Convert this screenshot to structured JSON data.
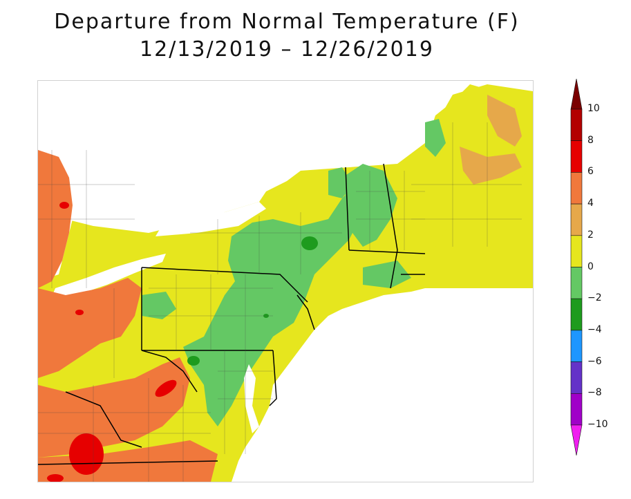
{
  "title": {
    "line1": "Departure from Normal Temperature (F)",
    "line2": "12/13/2019 – 12/26/2019"
  },
  "legend": {
    "ticks": [
      {
        "label": "10",
        "value": 10
      },
      {
        "label": "8",
        "value": 8
      },
      {
        "label": "6",
        "value": 6
      },
      {
        "label": "4",
        "value": 4
      },
      {
        "label": "2",
        "value": 2
      },
      {
        "label": "0",
        "value": 0
      },
      {
        "label": "−2",
        "value": -2
      },
      {
        "label": "−4",
        "value": -4
      },
      {
        "label": "−6",
        "value": -6
      },
      {
        "label": "−8",
        "value": -8
      },
      {
        "label": "−10",
        "value": -10
      }
    ],
    "bins": [
      {
        "from": 10,
        "to": 12,
        "color": "#7a0000"
      },
      {
        "from": 8,
        "to": 10,
        "color": "#b30000"
      },
      {
        "from": 6,
        "to": 8,
        "color": "#e60000"
      },
      {
        "from": 4,
        "to": 6,
        "color": "#f0783c"
      },
      {
        "from": 2,
        "to": 4,
        "color": "#e6a84a"
      },
      {
        "from": 0,
        "to": 2,
        "color": "#e6e61e"
      },
      {
        "from": -2,
        "to": 0,
        "color": "#64c864"
      },
      {
        "from": -4,
        "to": -2,
        "color": "#1e9b1e"
      },
      {
        "from": -6,
        "to": -4,
        "color": "#1e96ff"
      },
      {
        "from": -8,
        "to": -6,
        "color": "#6432c8"
      },
      {
        "from": -10,
        "to": -8,
        "color": "#a000c8"
      },
      {
        "from": -12,
        "to": -10,
        "color": "#f01ef0"
      }
    ]
  },
  "map_colors": {
    "water": "#ffffff",
    "plus2_4": "#e6a84a",
    "plus0_2": "#e6e61e",
    "minus2_0": "#64c864",
    "minus4_2": "#1e9b1e",
    "plus4_6": "#f0783c",
    "plus6_8": "#e60000",
    "boundary": "#000000"
  }
}
